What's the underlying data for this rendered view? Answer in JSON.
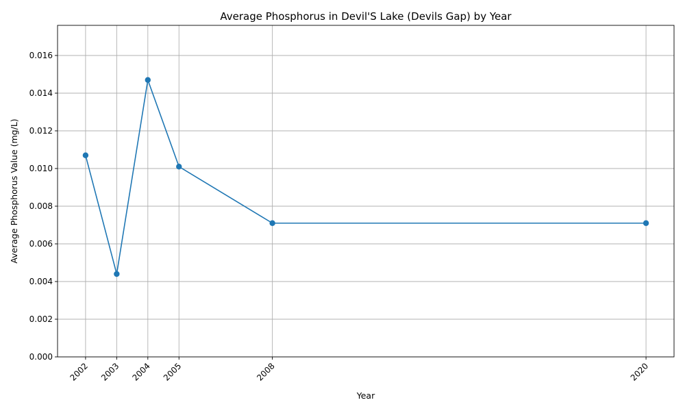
{
  "chart_data": {
    "type": "line",
    "title": "Average Phosphorus in Devil'S Lake (Devils Gap) by Year",
    "xlabel": "Year",
    "ylabel": "Average Phosphorus Value (mg/L)",
    "x": [
      2002,
      2003,
      2004,
      2005,
      2008,
      2020
    ],
    "x_tick_labels": [
      "2002",
      "2003",
      "2004",
      "2005",
      "2008",
      "2020"
    ],
    "series": [
      {
        "values": [
          0.0107,
          0.0044,
          0.0147,
          0.0101,
          0.0071,
          0.0071
        ]
      }
    ],
    "xlim": [
      2001.1,
      2020.9
    ],
    "ylim": [
      0,
      0.0176
    ],
    "y_ticks": [
      0,
      0.002,
      0.004,
      0.006,
      0.008,
      0.01,
      0.012,
      0.014,
      0.016
    ],
    "y_tick_labels": [
      "0.000",
      "0.002",
      "0.004",
      "0.006",
      "0.008",
      "0.010",
      "0.012",
      "0.014",
      "0.016"
    ],
    "grid": true,
    "x_tick_rotation": 45,
    "colors": {
      "series": "#1f77b4"
    }
  }
}
